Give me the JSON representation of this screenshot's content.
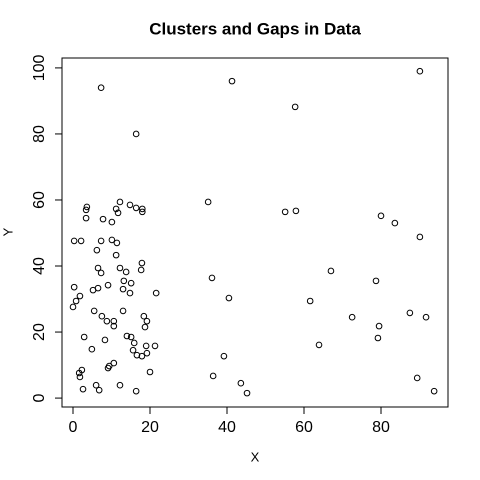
{
  "chart_data": {
    "type": "scatter",
    "title": "Clusters and Gaps in Data",
    "x_label": "X",
    "y_label": "Y",
    "xlim": [
      -2.86,
      97.4
    ],
    "ylim": [
      -2.7,
      103
    ],
    "xticks": [
      0,
      20,
      40,
      60,
      80
    ],
    "yticks": [
      0,
      20,
      40,
      60,
      80,
      100
    ],
    "color": "#000000",
    "grid": false,
    "x": [
      7.3,
      41.3,
      90.1,
      57.7,
      16.4,
      35.1,
      12.2,
      14.8,
      16.4,
      18,
      18,
      3.6,
      3.4,
      3.4,
      7.8,
      10.1,
      11.7,
      11.2,
      55.1,
      57.9,
      80,
      83.6,
      90.1,
      0.3,
      2.1,
      7.3,
      10.1,
      11.4,
      6.2,
      11.2,
      17.9,
      17.7,
      6.5,
      7.3,
      12.2,
      13.8,
      13.2,
      15.1,
      9.1,
      6.5,
      5.2,
      0.3,
      1.8,
      0.8,
      0,
      13,
      14.8,
      21.6,
      67,
      78.7,
      36.1,
      40.5,
      61.6,
      72.5,
      87.5,
      91.7,
      79.5,
      79.2,
      63.9,
      5.5,
      7.5,
      8.8,
      10.6,
      13,
      10.6,
      18.4,
      19.2,
      18.7,
      2.9,
      8.3,
      14,
      15.1,
      15.9,
      19,
      21.3,
      4.9,
      15.6,
      16.6,
      17.9,
      19.2,
      39.2,
      10.6,
      9.4,
      9.1,
      20,
      2.3,
      1.6,
      1.8,
      36.4,
      89.4,
      43.6,
      12.2,
      6,
      2.6,
      6.8,
      16.4,
      45.2,
      93.8
    ],
    "y": [
      94,
      96,
      99,
      88.2,
      80,
      59.4,
      59.4,
      58.5,
      57.6,
      57.3,
      56.4,
      57.9,
      57,
      54.5,
      54.2,
      53.3,
      56.1,
      57.3,
      56.4,
      56.7,
      55.2,
      53,
      48.8,
      47.6,
      47.6,
      47.6,
      47.9,
      47,
      44.8,
      43.3,
      40.9,
      38.8,
      39.4,
      37.9,
      39.4,
      38.2,
      35.5,
      34.8,
      34.2,
      33.3,
      32.7,
      33.6,
      30.9,
      29.4,
      27.6,
      33,
      31.8,
      31.8,
      38.5,
      35.5,
      36.4,
      30.3,
      29.4,
      24.5,
      25.8,
      24.5,
      21.8,
      18.2,
      16.1,
      26.4,
      24.8,
      23.3,
      23.3,
      26.4,
      21.8,
      24.8,
      23.3,
      21.5,
      18.5,
      17.6,
      18.8,
      18.5,
      16.7,
      15.8,
      15.8,
      14.8,
      14.5,
      13,
      12.7,
      13.6,
      12.7,
      10.6,
      9.7,
      9.1,
      7.9,
      8.5,
      7.6,
      6.4,
      6.7,
      6.1,
      4.5,
      3.9,
      3.9,
      2.7,
      2.4,
      2.1,
      1.5,
      2.1
    ]
  }
}
